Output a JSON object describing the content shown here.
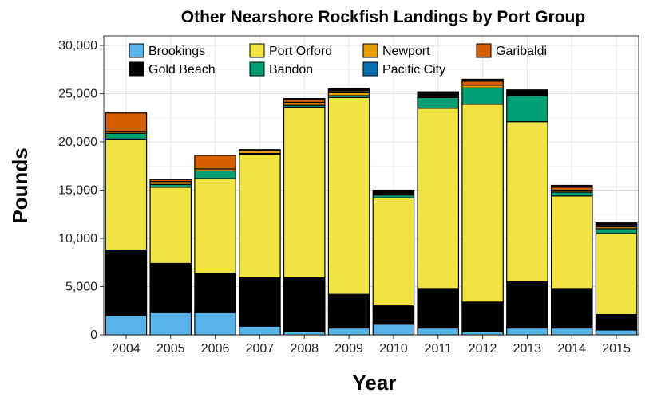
{
  "chart_data": {
    "type": "bar",
    "stacked": true,
    "title": "Other Nearshore Rockfish Landings by Port Group",
    "xlabel": "Year",
    "ylabel": "Pounds",
    "ylim": [
      0,
      31000
    ],
    "yticks": [
      0,
      5000,
      10000,
      15000,
      20000,
      25000,
      30000
    ],
    "ytick_labels": [
      "0",
      "5,000",
      "10,000",
      "15,000",
      "20,000",
      "25,000",
      "30,000"
    ],
    "grid": true,
    "legend_position": "top-left inside",
    "categories": [
      "2004",
      "2005",
      "2006",
      "2007",
      "2008",
      "2009",
      "2010",
      "2011",
      "2012",
      "2013",
      "2014",
      "2015"
    ],
    "series": [
      {
        "name": "Brookings",
        "color": "#56b4e9",
        "values": [
          2000,
          2300,
          2300,
          900,
          300,
          700,
          1100,
          700,
          300,
          700,
          700,
          500
        ]
      },
      {
        "name": "Gold Beach",
        "color": "#000000",
        "values": [
          6800,
          5100,
          4100,
          5000,
          5600,
          3500,
          1900,
          4100,
          3100,
          4800,
          4100,
          1600
        ]
      },
      {
        "name": "Port Orford",
        "color": "#f0e442",
        "values": [
          11500,
          7900,
          9800,
          12800,
          17700,
          20400,
          11200,
          18700,
          20500,
          16600,
          9600,
          8400
        ]
      },
      {
        "name": "Bandon",
        "color": "#009e73",
        "values": [
          600,
          300,
          800,
          100,
          200,
          200,
          300,
          1100,
          1700,
          2700,
          400,
          500
        ]
      },
      {
        "name": "Newport",
        "color": "#e69f00",
        "values": [
          200,
          300,
          200,
          300,
          300,
          300,
          100,
          0,
          300,
          0,
          200,
          200
        ]
      },
      {
        "name": "Pacific City",
        "color": "#0072b2",
        "values": [
          0,
          0,
          0,
          0,
          0,
          0,
          0,
          0,
          0,
          0,
          0,
          0
        ]
      },
      {
        "name": "Garibaldi",
        "color": "#d55e00",
        "values": [
          1900,
          200,
          1400,
          100,
          300,
          200,
          0,
          0,
          400,
          0,
          300,
          200
        ]
      },
      {
        "name": "",
        "color": "#000000",
        "values": [
          0,
          0,
          0,
          0,
          100,
          200,
          400,
          600,
          200,
          600,
          200,
          200
        ]
      }
    ],
    "legend_layout": [
      [
        "Brookings",
        "Port Orford",
        "Newport",
        "Garibaldi"
      ],
      [
        "Gold Beach",
        "Bandon",
        "Pacific City"
      ]
    ]
  }
}
